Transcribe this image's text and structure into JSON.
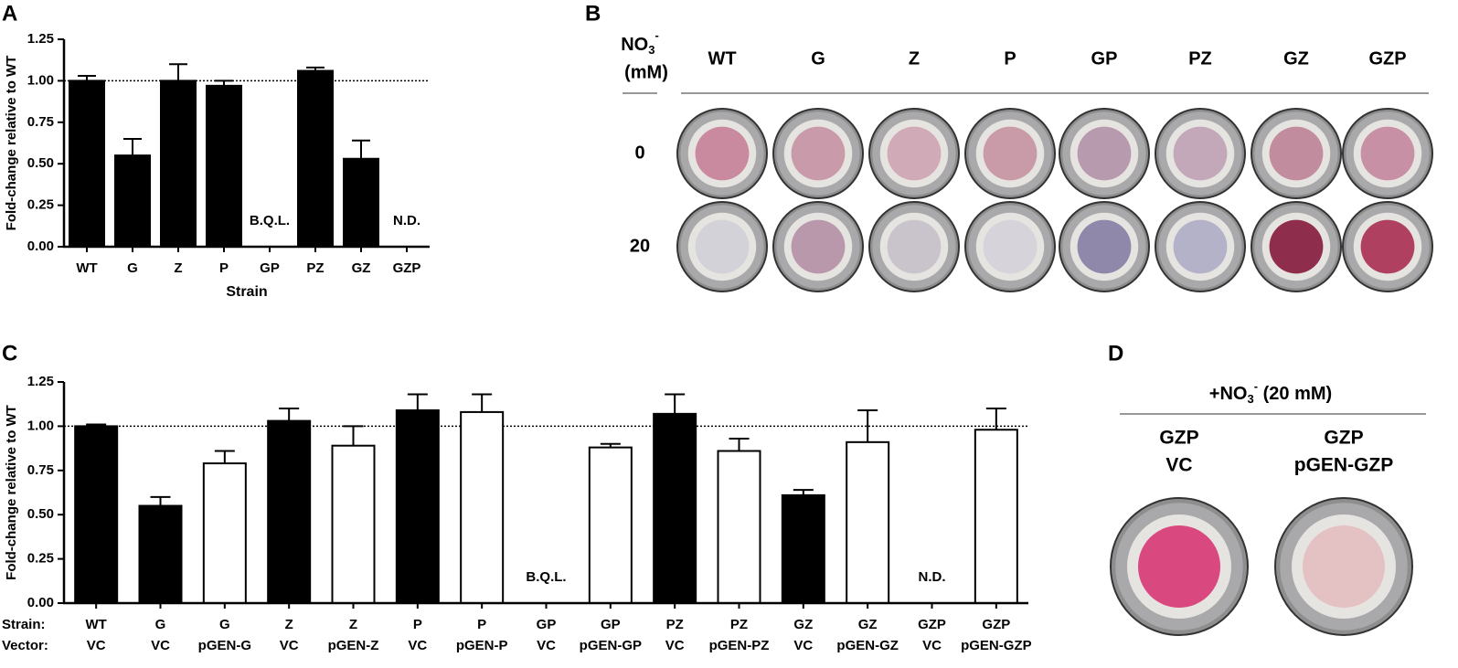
{
  "panel_labels": [
    "A",
    "B",
    "C",
    "D"
  ],
  "chart_data": [
    {
      "type": "bar",
      "ylabel": "Fold-change relative to WT",
      "xlabel": "Strain",
      "categories": [
        "WT",
        "G",
        "Z",
        "P",
        "GP",
        "PZ",
        "GZ",
        "GZP"
      ],
      "values": [
        1.0,
        0.55,
        1.0,
        0.97,
        null,
        1.06,
        0.53,
        null
      ],
      "errors": [
        0.03,
        0.1,
        0.1,
        0.03,
        null,
        0.02,
        0.11,
        null
      ],
      "value_labels": [
        null,
        null,
        null,
        null,
        "B.Q.L.",
        null,
        null,
        "N.D."
      ],
      "color": "#000000",
      "ref_line": 1,
      "ylim": [
        0,
        1.25
      ],
      "yticks": [
        {
          "value": 0,
          "label": "0.00"
        },
        0.25,
        {
          "value": 0.5,
          "label": "0.50"
        },
        0.75,
        {
          "value": 1,
          "label": "1.00"
        },
        1.25
      ]
    },
    {
      "type": "bar",
      "ylabel": "Fold-change  relative to WT",
      "row_labels": [
        "Strain:",
        "Vector:"
      ],
      "categories": [
        "WT",
        "G",
        "G",
        "Z",
        "Z",
        "P",
        "P",
        "GP",
        "GP",
        "PZ",
        "PZ",
        "GZ",
        "GZ",
        "GZP",
        "GZP"
      ],
      "vectors": [
        "VC",
        "VC",
        "pGEN-G",
        "VC",
        "pGEN-Z",
        "VC",
        "pGEN-P",
        "VC",
        "pGEN-GP",
        "VC",
        "pGEN-PZ",
        "VC",
        "pGEN-GZ",
        "VC",
        "pGEN-GZP"
      ],
      "values": [
        1.0,
        0.55,
        0.79,
        1.03,
        0.89,
        1.09,
        1.08,
        null,
        0.88,
        1.07,
        0.86,
        0.61,
        0.91,
        null,
        0.98
      ],
      "errors": [
        0.01,
        0.05,
        0.07,
        0.07,
        0.11,
        0.09,
        0.1,
        null,
        0.02,
        0.11,
        0.07,
        0.03,
        0.18,
        null,
        0.12
      ],
      "value_labels": [
        null,
        null,
        null,
        null,
        null,
        null,
        null,
        "B.Q.L.",
        null,
        null,
        null,
        null,
        null,
        "N.D.",
        null
      ],
      "colors": [
        "#000000",
        "#000000",
        "#ffffff",
        "#000000",
        "#ffffff",
        "#000000",
        "#ffffff",
        "#000000",
        "#ffffff",
        "#000000",
        "#ffffff",
        "#000000",
        "#ffffff",
        "#000000",
        "#ffffff"
      ],
      "ref_line": 1,
      "ylim": [
        0,
        1.25
      ],
      "yticks": [
        {
          "value": 0,
          "label": "0.00"
        },
        0.25,
        {
          "value": 0.5,
          "label": "0.50"
        },
        0.75,
        {
          "value": 1,
          "label": "1.00"
        },
        1.25
      ]
    }
  ],
  "plates": {
    "nitrate": {
      "base": "NO",
      "sub": "3",
      "sup": "-"
    },
    "unit": "(mM)",
    "strains": [
      "WT",
      "G",
      "Z",
      "P",
      "GP",
      "PZ",
      "GZ",
      "GZP"
    ],
    "rows": [
      {
        "label": "0",
        "colors": [
          "#c98aa0",
          "#c99aaa",
          "#d0aab6",
          "#c99aa8",
          "#b89aae",
          "#c2a8b8",
          "#c08c9e",
          "#c890a5"
        ]
      },
      {
        "label": "20",
        "colors": [
          "#d2d2d8",
          "#b898aa",
          "#c9c4cc",
          "#d6d3da",
          "#8f88aa",
          "#b4b2c8",
          "#8e2d4c",
          "#b0405f"
        ]
      }
    ]
  },
  "panel_d": {
    "header": {
      "base": "+NO",
      "sub": "3",
      "sup": "-",
      "rest": " (20 mM)"
    },
    "plates": [
      {
        "strain": "GZP",
        "vector": "VC",
        "color": "#d9487e"
      },
      {
        "strain": "GZP",
        "vector": "pGEN-GZP",
        "color": "#e4c2c4"
      }
    ]
  }
}
